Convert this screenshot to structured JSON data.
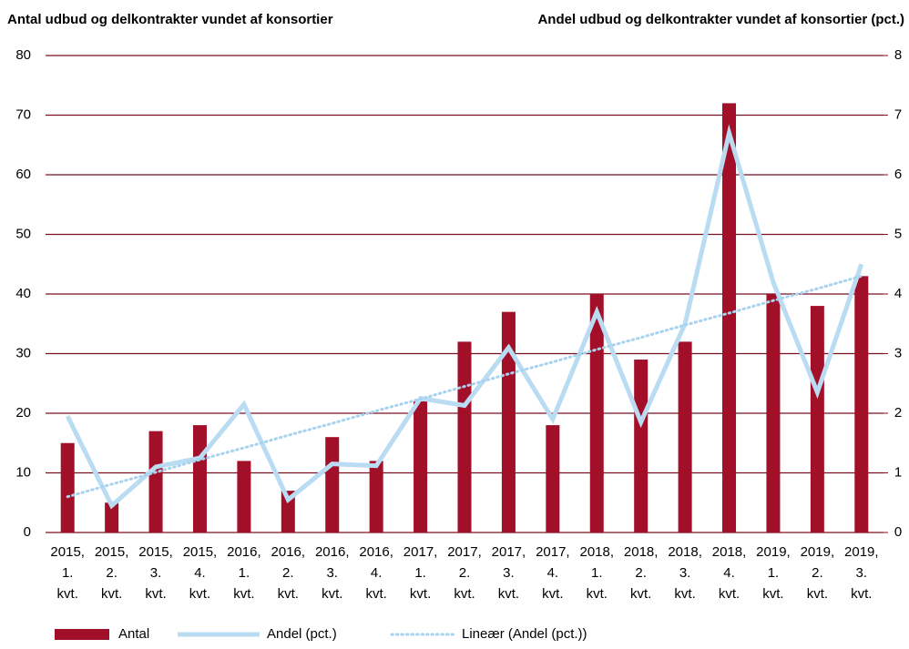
{
  "chart_data": {
    "type": "combo",
    "title_left": "Antal udbud og delkontrakter vundet af konsortier",
    "title_right": "Andel udbud og delkontrakter vundet af konsortier (pct.)",
    "categories": [
      [
        "2015,",
        "1.",
        "kvt."
      ],
      [
        "2015,",
        "2.",
        "kvt."
      ],
      [
        "2015,",
        "3.",
        "kvt."
      ],
      [
        "2015,",
        "4.",
        "kvt."
      ],
      [
        "2016,",
        "1.",
        "kvt."
      ],
      [
        "2016,",
        "2.",
        "kvt."
      ],
      [
        "2016,",
        "3.",
        "kvt."
      ],
      [
        "2016,",
        "4.",
        "kvt."
      ],
      [
        "2017,",
        "1.",
        "kvt."
      ],
      [
        "2017,",
        "2.",
        "kvt."
      ],
      [
        "2017,",
        "3.",
        "kvt."
      ],
      [
        "2017,",
        "4.",
        "kvt."
      ],
      [
        "2018,",
        "1.",
        "kvt."
      ],
      [
        "2018,",
        "2.",
        "kvt."
      ],
      [
        "2018,",
        "3.",
        "kvt."
      ],
      [
        "2018,",
        "4.",
        "kvt."
      ],
      [
        "2019,",
        "1.",
        "kvt."
      ],
      [
        "2019,",
        "2.",
        "kvt."
      ],
      [
        "2019,",
        "3.",
        "kvt."
      ]
    ],
    "series": [
      {
        "name": "Antal",
        "type": "bar",
        "color": "#a20f28",
        "axis": "y",
        "values": [
          15,
          5,
          17,
          18,
          12,
          7,
          16,
          12,
          22,
          32,
          37,
          18,
          40,
          29,
          32,
          72,
          40,
          38,
          43
        ]
      },
      {
        "name": "Andel (pct.)",
        "type": "line",
        "color": "#b9dcf2",
        "axis": "y2",
        "values": [
          1.95,
          0.45,
          1.1,
          1.25,
          2.15,
          0.55,
          1.15,
          1.12,
          2.25,
          2.13,
          3.1,
          1.9,
          3.7,
          1.85,
          3.5,
          6.7,
          4.2,
          2.35,
          4.5
        ]
      },
      {
        "name": "Lineær (Andel (pct.))",
        "type": "dotted",
        "color": "#a8d3ee",
        "axis": "y2",
        "values": [
          0.6,
          0.81,
          1.01,
          1.22,
          1.42,
          1.63,
          1.83,
          2.04,
          2.24,
          2.45,
          2.66,
          2.86,
          3.07,
          3.27,
          3.48,
          3.68,
          3.89,
          4.09,
          4.3
        ]
      }
    ],
    "ylim": [
      0,
      80
    ],
    "yticks": [
      0,
      10,
      20,
      30,
      40,
      50,
      60,
      70,
      80
    ],
    "y2lim": [
      0,
      8
    ],
    "y2ticks": [
      0,
      1,
      2,
      3,
      4,
      5,
      6,
      7,
      8
    ],
    "grid": true,
    "legend": "bottom"
  }
}
